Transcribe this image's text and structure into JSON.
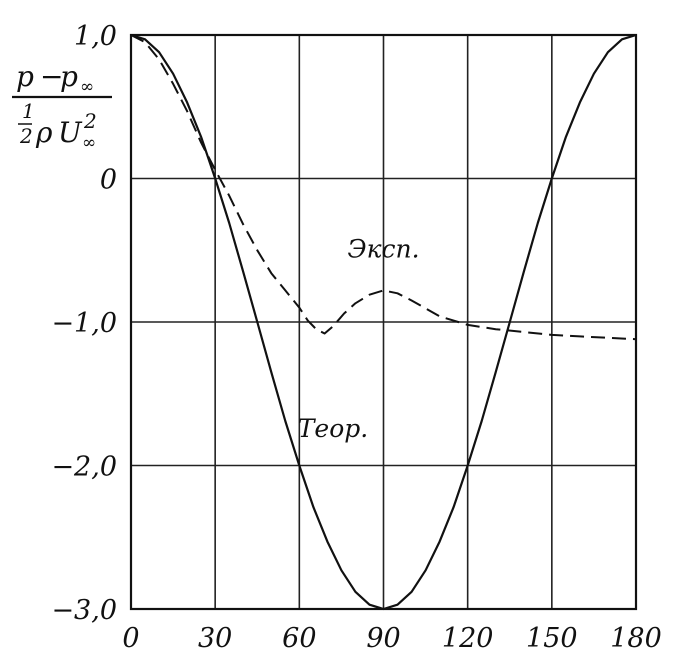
{
  "chart_data": {
    "type": "line",
    "title": "",
    "xlabel": "",
    "ylabel": {
      "numerator_main": "p",
      "numerator_minus": "−",
      "numerator_p": "p",
      "numerator_sub": "∞",
      "denominator_frac_num": "1",
      "denominator_frac_den": "2",
      "denominator_rho": "ρ",
      "denominator_U": "U",
      "denominator_exp": "2",
      "denominator_sub": "∞"
    },
    "xlim": [
      0,
      180
    ],
    "ylim": [
      -3.0,
      1.0
    ],
    "grid": true,
    "x_ticks": [
      0,
      30,
      60,
      90,
      120,
      150,
      180
    ],
    "x_tick_labels": [
      "0",
      "30",
      "60",
      "90",
      "120",
      "150",
      "180"
    ],
    "y_ticks": [
      1.0,
      0,
      -1.0,
      -2.0,
      -3.0
    ],
    "y_tick_labels": [
      "1,0",
      "0",
      "−1,0",
      "−2,0",
      "−3,0"
    ],
    "series": [
      {
        "name": "Теор.",
        "style": "solid",
        "color": "#111111",
        "x": [
          0,
          5,
          10,
          15,
          20,
          25,
          30,
          35,
          40,
          45,
          50,
          55,
          60,
          65,
          70,
          75,
          80,
          85,
          90,
          95,
          100,
          105,
          110,
          115,
          120,
          125,
          130,
          135,
          140,
          145,
          150,
          155,
          160,
          165,
          170,
          175,
          180
        ],
        "y": [
          1.0,
          0.97,
          0.88,
          0.73,
          0.53,
          0.29,
          0.0,
          -0.31,
          -0.65,
          -1.0,
          -1.35,
          -1.69,
          -2.0,
          -2.29,
          -2.53,
          -2.73,
          -2.88,
          -2.97,
          -3.0,
          -2.97,
          -2.88,
          -2.73,
          -2.53,
          -2.29,
          -2.0,
          -1.69,
          -1.35,
          -1.0,
          -0.65,
          -0.31,
          0.0,
          0.29,
          0.53,
          0.73,
          0.88,
          0.97,
          1.0
        ]
      },
      {
        "name": "Эксп.",
        "style": "dashed",
        "color": "#111111",
        "x": [
          0,
          5,
          10,
          15,
          20,
          25,
          30,
          35,
          40,
          45,
          50,
          55,
          60,
          63,
          66,
          69,
          72,
          76,
          80,
          85,
          90,
          95,
          100,
          110,
          120,
          130,
          140,
          150,
          160,
          170,
          180
        ],
        "y": [
          1.0,
          0.95,
          0.83,
          0.66,
          0.47,
          0.25,
          0.06,
          -0.12,
          -0.32,
          -0.5,
          -0.66,
          -0.78,
          -0.9,
          -0.99,
          -1.05,
          -1.08,
          -1.03,
          -0.94,
          -0.87,
          -0.81,
          -0.78,
          -0.8,
          -0.85,
          -0.96,
          -1.02,
          -1.05,
          -1.07,
          -1.09,
          -1.1,
          -1.11,
          -1.12
        ]
      }
    ]
  }
}
